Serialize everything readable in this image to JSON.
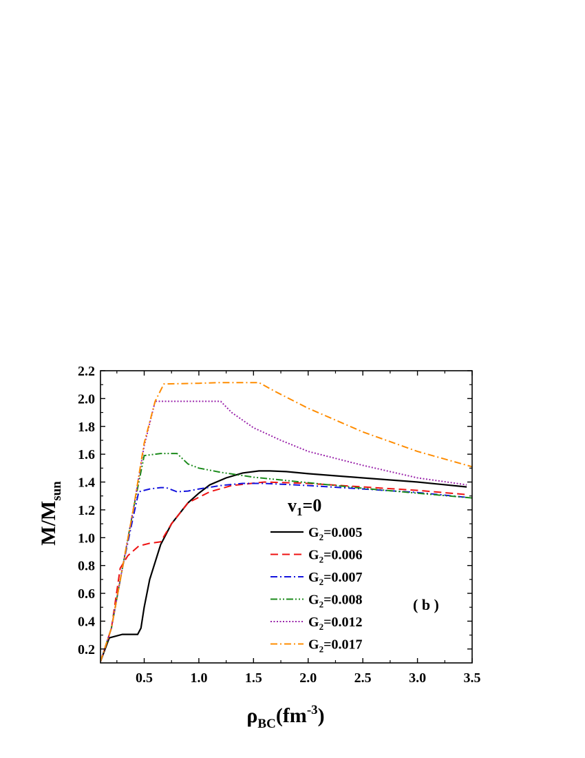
{
  "chart_data": {
    "type": "line",
    "panel_label": "( b )",
    "xlabel": {
      "main": "ρ",
      "sub": "BC",
      "unit_open": "(fm",
      "unit_sup": "-3",
      "unit_close": ")"
    },
    "ylabel": {
      "main": "M/M",
      "sub": "sun"
    },
    "xlim": [
      0.1,
      3.5
    ],
    "ylim": [
      0.1,
      2.2
    ],
    "xticks": [
      0.5,
      1.0,
      1.5,
      2.0,
      2.5,
      3.0,
      3.5
    ],
    "xtick_labels": [
      "0.5",
      "1.0",
      "1.5",
      "2.0",
      "2.5",
      "3.0",
      "3.5"
    ],
    "yticks": [
      0.2,
      0.4,
      0.6,
      0.8,
      1.0,
      1.2,
      1.4,
      1.6,
      1.8,
      2.0,
      2.2
    ],
    "ytick_labels": [
      "0.2",
      "0.4",
      "0.6",
      "0.8",
      "1.0",
      "1.2",
      "1.4",
      "1.6",
      "1.8",
      "2.0",
      "2.2"
    ],
    "grid": false,
    "legend": {
      "placement": "lower-center",
      "title": {
        "main": "v",
        "sub": "1",
        "rest": "=0"
      }
    },
    "series": [
      {
        "name": "G2=0.005",
        "label_main": "G",
        "label_sub": "2",
        "label_rest": "=0.005",
        "color": "#000000",
        "dash": "solid",
        "points": [
          [
            0.1,
            0.11
          ],
          [
            0.18,
            0.28
          ],
          [
            0.3,
            0.305
          ],
          [
            0.44,
            0.305
          ],
          [
            0.47,
            0.35
          ],
          [
            0.5,
            0.5
          ],
          [
            0.55,
            0.7
          ],
          [
            0.65,
            0.95
          ],
          [
            0.75,
            1.1
          ],
          [
            0.9,
            1.25
          ],
          [
            1.0,
            1.32
          ],
          [
            1.1,
            1.38
          ],
          [
            1.25,
            1.43
          ],
          [
            1.4,
            1.465
          ],
          [
            1.55,
            1.48
          ],
          [
            1.65,
            1.48
          ],
          [
            1.8,
            1.475
          ],
          [
            2.0,
            1.46
          ],
          [
            2.5,
            1.43
          ],
          [
            3.0,
            1.4
          ],
          [
            3.45,
            1.365
          ]
        ]
      },
      {
        "name": "G2=0.006",
        "label_main": "G",
        "label_sub": "2",
        "label_rest": "=0.006",
        "color": "#ee1111",
        "dash": "dashed",
        "points": [
          [
            0.1,
            0.11
          ],
          [
            0.2,
            0.35
          ],
          [
            0.28,
            0.78
          ],
          [
            0.35,
            0.87
          ],
          [
            0.45,
            0.94
          ],
          [
            0.55,
            0.96
          ],
          [
            0.65,
            0.97
          ],
          [
            0.75,
            1.1
          ],
          [
            0.9,
            1.25
          ],
          [
            1.0,
            1.29
          ],
          [
            1.1,
            1.33
          ],
          [
            1.3,
            1.375
          ],
          [
            1.6,
            1.4
          ],
          [
            2.0,
            1.39
          ],
          [
            2.5,
            1.365
          ],
          [
            3.0,
            1.34
          ],
          [
            3.45,
            1.31
          ]
        ]
      },
      {
        "name": "G2=0.007",
        "label_main": "G",
        "label_sub": "2",
        "label_rest": "=0.007",
        "color": "#1111dd",
        "dash": "dashdot",
        "points": [
          [
            0.1,
            0.11
          ],
          [
            0.2,
            0.35
          ],
          [
            0.3,
            0.78
          ],
          [
            0.4,
            1.15
          ],
          [
            0.45,
            1.33
          ],
          [
            0.55,
            1.35
          ],
          [
            0.65,
            1.36
          ],
          [
            0.7,
            1.36
          ],
          [
            0.8,
            1.33
          ],
          [
            0.9,
            1.335
          ],
          [
            1.0,
            1.35
          ],
          [
            1.2,
            1.375
          ],
          [
            1.4,
            1.39
          ],
          [
            1.6,
            1.39
          ],
          [
            2.0,
            1.375
          ],
          [
            2.5,
            1.35
          ],
          [
            3.0,
            1.325
          ],
          [
            3.45,
            1.29
          ]
        ]
      },
      {
        "name": "G2=0.008",
        "label_main": "G",
        "label_sub": "2",
        "label_rest": "=0.008",
        "color": "#1a8a1a",
        "dash": "dashdotdot",
        "points": [
          [
            0.1,
            0.11
          ],
          [
            0.2,
            0.35
          ],
          [
            0.3,
            0.78
          ],
          [
            0.4,
            1.2
          ],
          [
            0.5,
            1.59
          ],
          [
            0.65,
            1.605
          ],
          [
            0.8,
            1.605
          ],
          [
            0.9,
            1.53
          ],
          [
            1.0,
            1.5
          ],
          [
            1.2,
            1.47
          ],
          [
            1.5,
            1.435
          ],
          [
            2.0,
            1.395
          ],
          [
            2.5,
            1.355
          ],
          [
            3.0,
            1.32
          ],
          [
            3.5,
            1.285
          ]
        ]
      },
      {
        "name": "G2=0.012",
        "label_main": "G",
        "label_sub": "2",
        "label_rest": "=0.012",
        "color": "#9922aa",
        "dash": "dotted",
        "points": [
          [
            0.1,
            0.11
          ],
          [
            0.2,
            0.35
          ],
          [
            0.3,
            0.78
          ],
          [
            0.4,
            1.2
          ],
          [
            0.5,
            1.66
          ],
          [
            0.6,
            1.98
          ],
          [
            0.8,
            1.98
          ],
          [
            1.2,
            1.98
          ],
          [
            1.3,
            1.9
          ],
          [
            1.5,
            1.79
          ],
          [
            1.75,
            1.7
          ],
          [
            2.0,
            1.62
          ],
          [
            2.5,
            1.52
          ],
          [
            3.0,
            1.43
          ],
          [
            3.45,
            1.38
          ]
        ]
      },
      {
        "name": "G2=0.017",
        "label_main": "G",
        "label_sub": "2",
        "label_rest": "=0.017",
        "color": "#ff8c00",
        "dash": "dashdot",
        "points": [
          [
            0.1,
            0.11
          ],
          [
            0.2,
            0.35
          ],
          [
            0.3,
            0.78
          ],
          [
            0.4,
            1.2
          ],
          [
            0.5,
            1.68
          ],
          [
            0.6,
            1.98
          ],
          [
            0.68,
            2.105
          ],
          [
            1.0,
            2.11
          ],
          [
            1.2,
            2.115
          ],
          [
            1.55,
            2.115
          ],
          [
            1.7,
            2.05
          ],
          [
            2.0,
            1.93
          ],
          [
            2.5,
            1.76
          ],
          [
            3.0,
            1.62
          ],
          [
            3.5,
            1.51
          ]
        ]
      }
    ]
  }
}
